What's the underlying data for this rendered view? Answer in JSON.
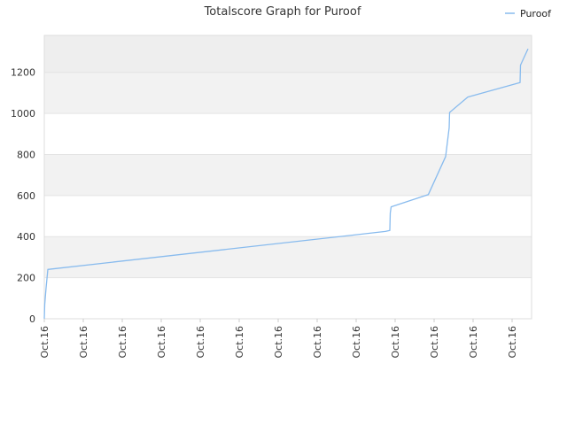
{
  "chart_data": {
    "type": "line",
    "title": "Totalscore Graph for Puroof",
    "xlabel": "",
    "ylabel": "",
    "ylim": [
      0,
      1380
    ],
    "yticks": [
      0,
      200,
      400,
      600,
      800,
      1000,
      1200
    ],
    "grid": true,
    "legend_position": "top-right",
    "x_tick_labels": [
      "Oct.16",
      "Oct.16",
      "Oct.16",
      "Oct.16",
      "Oct.16",
      "Oct.16",
      "Oct.16",
      "Oct.16",
      "Oct.16",
      "Oct.16",
      "Oct.16",
      "Oct.16",
      "Oct.16"
    ],
    "series": [
      {
        "name": "Puroof",
        "color": "#88bbee",
        "points": [
          [
            0.0,
            0
          ],
          [
            0.5,
            70
          ],
          [
            2.0,
            150
          ],
          [
            3.0,
            195
          ],
          [
            4.0,
            240
          ],
          [
            385.0,
            425
          ],
          [
            390.0,
            430
          ],
          [
            390.5,
            515
          ],
          [
            391.5,
            545
          ],
          [
            433.5,
            605
          ],
          [
            453.0,
            790
          ],
          [
            457.0,
            930
          ],
          [
            457.5,
            1005
          ],
          [
            478.0,
            1080
          ],
          [
            537.0,
            1150
          ],
          [
            537.5,
            1235
          ],
          [
            546.0,
            1315
          ]
        ]
      }
    ]
  }
}
